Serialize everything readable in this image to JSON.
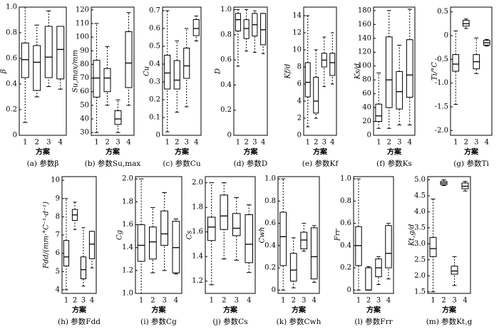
{
  "chart_data": [
    {
      "type": "box",
      "ylabel": "β",
      "xlabel": "方案",
      "caption": "(a) 参数β",
      "categories": [
        "1",
        "2",
        "3",
        "4"
      ],
      "ylim": [
        0,
        1.0
      ],
      "yticks": [
        0,
        0.2,
        0.4,
        0.6,
        0.8,
        {
          "value": 1,
          "label": "1.0"
        }
      ],
      "boxes": [
        {
          "min": 0.1,
          "q1": 0.45,
          "median": 0.59,
          "q3": 0.72,
          "max": 1.0
        },
        {
          "min": 0.3,
          "q1": 0.35,
          "median": 0.57,
          "q3": 0.7,
          "max": 0.86
        },
        {
          "min": 0.38,
          "q1": 0.45,
          "median": 0.61,
          "q3": 0.85,
          "max": 0.97
        },
        {
          "min": 0.36,
          "q1": 0.44,
          "median": 0.67,
          "q3": 0.85,
          "max": 0.85
        }
      ]
    },
    {
      "type": "box",
      "ylabel": "Su,max/mm",
      "xlabel": "方案",
      "caption": "(b) 参数Su,max",
      "categories": [
        "1",
        "2",
        "3",
        "4"
      ],
      "ylim": [
        28,
        122
      ],
      "yticks": [
        30,
        40,
        50,
        60,
        70,
        80,
        90,
        100,
        110,
        120
      ],
      "boxes": [
        {
          "min": 30,
          "q1": 56,
          "median": 70,
          "q3": 83,
          "max": 110
        },
        {
          "min": 50,
          "q1": 60,
          "median": 70,
          "q3": 77,
          "max": 93
        },
        {
          "min": 30,
          "q1": 36,
          "median": 40,
          "q3": 46,
          "max": 54
        },
        {
          "min": 50,
          "q1": 63,
          "median": 81,
          "q3": 104,
          "max": 118
        }
      ]
    },
    {
      "type": "box",
      "ylabel": "Cu",
      "xlabel": "方案",
      "caption": "(c) 参数Cu",
      "categories": [
        "1",
        "2",
        "3",
        "4"
      ],
      "ylim": [
        0,
        0.72
      ],
      "yticks": [
        0,
        0.1,
        0.2,
        0.3,
        0.4,
        0.5,
        0.6,
        0.7
      ],
      "boxes": [
        {
          "min": 0.02,
          "q1": 0.26,
          "median": 0.35,
          "q3": 0.45,
          "max": 0.7
        },
        {
          "min": 0.13,
          "q1": 0.26,
          "median": 0.31,
          "q3": 0.42,
          "max": 0.53
        },
        {
          "min": 0.16,
          "q1": 0.32,
          "median": 0.39,
          "q3": 0.49,
          "max": 0.6
        },
        {
          "min": 0.53,
          "q1": 0.56,
          "median": 0.6,
          "q3": 0.65,
          "max": 0.67
        }
      ]
    },
    {
      "type": "box",
      "ylabel": "D",
      "xlabel": "方案",
      "caption": "(d) 参数D",
      "categories": [
        "1",
        "2",
        "3",
        "4"
      ],
      "ylim": [
        0,
        1.02
      ],
      "yticks": [
        0,
        0.2,
        0.4,
        0.6,
        0.8,
        {
          "value": 1,
          "label": "1.0"
        }
      ],
      "boxes": [
        {
          "min": 0.55,
          "q1": 0.83,
          "median": 0.92,
          "q3": 0.97,
          "max": 1.0
        },
        {
          "min": 0.67,
          "q1": 0.77,
          "median": 0.85,
          "q3": 0.92,
          "max": 1.0
        },
        {
          "min": 0.66,
          "q1": 0.79,
          "median": 0.88,
          "q3": 0.97,
          "max": 0.99
        },
        {
          "min": 0.65,
          "q1": 0.72,
          "median": 0.84,
          "q3": 0.97,
          "max": 0.97
        }
      ]
    },
    {
      "type": "box",
      "ylabel": "Kf/d",
      "xlabel": "方案",
      "caption": "(e) 参数Kf",
      "categories": [
        "1",
        "2",
        "3",
        "4"
      ],
      "ylim": [
        0,
        15
      ],
      "yticks": [
        0,
        2,
        4,
        6,
        8,
        10,
        12,
        14
      ],
      "boxes": [
        {
          "min": 1,
          "q1": 4.5,
          "median": 6.2,
          "q3": 8.5,
          "max": 14
        },
        {
          "min": 2,
          "q1": 2.6,
          "median": 4,
          "q3": 6.8,
          "max": 10
        },
        {
          "min": 5.7,
          "q1": 8,
          "median": 8.8,
          "q3": 9.6,
          "max": 11.5
        },
        {
          "min": 6,
          "q1": 7,
          "median": 8.5,
          "q3": 9.6,
          "max": 12
        }
      ]
    },
    {
      "type": "box",
      "ylabel": "Ks/d",
      "xlabel": "方案",
      "caption": "(f) 参数Ks",
      "categories": [
        "1",
        "2",
        "3",
        "4"
      ],
      "ylim": [
        0,
        185
      ],
      "yticks": [
        0,
        20,
        40,
        60,
        80,
        100,
        120,
        140,
        160,
        180
      ],
      "boxes": [
        {
          "min": 10,
          "q1": 20,
          "median": 28,
          "q3": 45,
          "max": 90
        },
        {
          "min": 10,
          "q1": 40,
          "median": 80,
          "q3": 142,
          "max": 180
        },
        {
          "min": 15,
          "q1": 38,
          "median": 63,
          "q3": 92,
          "max": 130
        },
        {
          "min": 15,
          "q1": 55,
          "median": 87,
          "q3": 138,
          "max": 182
        }
      ]
    },
    {
      "type": "box",
      "ylabel": "Ti/°C",
      "xlabel": "方案",
      "caption": "(g) 参数Ti",
      "categories": [
        "1",
        "2",
        "3",
        "4"
      ],
      "ylim": [
        -2.1,
        0.6
      ],
      "yticks": [
        0.5,
        0,
        -0.5,
        {
          "value": -1,
          "label": "-1.0"
        },
        -1.5,
        {
          "value": -2,
          "label": "-2.0"
        }
      ],
      "boxes": [
        {
          "min": -1.45,
          "q1": -0.75,
          "median": -0.6,
          "q3": -0.4,
          "max": 0.1
        },
        {
          "min": 0.15,
          "q1": 0.2,
          "median": 0.25,
          "q3": 0.32,
          "max": 0.35
        },
        {
          "min": -0.8,
          "q1": -0.7,
          "median": -0.55,
          "q3": -0.4,
          "max": -0.05
        },
        {
          "min": -0.22,
          "q1": -0.2,
          "median": -0.15,
          "q3": -0.1,
          "max": -0.08
        }
      ]
    },
    {
      "type": "box",
      "ylabel": "Fdd/(mm·°C⁻¹·d⁻¹)",
      "xlabel": "方案",
      "caption": "(h) 参数Fdd",
      "categories": [
        "1",
        "2",
        "3",
        "4"
      ],
      "ylim": [
        3.8,
        10.2
      ],
      "yticks": [
        4,
        5,
        6,
        7,
        8,
        9,
        10
      ],
      "boxes": [
        {
          "min": 4,
          "q1": 5.3,
          "median": 5.8,
          "q3": 6.7,
          "max": 9
        },
        {
          "min": 7.3,
          "q1": 7.8,
          "median": 8.1,
          "q3": 8.4,
          "max": 8.8
        },
        {
          "min": 4.2,
          "q1": 4.6,
          "median": 5.1,
          "q3": 5.8,
          "max": 7.4
        },
        {
          "min": 5.2,
          "q1": 5.7,
          "median": 6.5,
          "q3": 7.2,
          "max": 7.2
        }
      ]
    },
    {
      "type": "box",
      "ylabel": "Cg",
      "xlabel": "方案",
      "caption": "(i) 参数Cg",
      "categories": [
        "1",
        "2",
        "3",
        "4"
      ],
      "ylim": [
        1.0,
        2.02
      ],
      "yticks": [
        {
          "value": 1,
          "label": "1.0"
        },
        1.2,
        1.4,
        1.6,
        1.8,
        {
          "value": 2,
          "label": "2.0"
        }
      ],
      "boxes": [
        {
          "min": 1.0,
          "q1": 1.28,
          "median": 1.42,
          "q3": 1.6,
          "max": 2.0
        },
        {
          "min": 1.18,
          "q1": 1.3,
          "median": 1.45,
          "q3": 1.58,
          "max": 1.75
        },
        {
          "min": 1.2,
          "q1": 1.42,
          "median": 1.52,
          "q3": 1.72,
          "max": 1.88
        },
        {
          "min": 1.17,
          "q1": 1.18,
          "median": 1.4,
          "q3": 1.63,
          "max": 1.65
        }
      ]
    },
    {
      "type": "box",
      "ylabel": "Cs",
      "xlabel": "方案",
      "caption": "(j) 参数Cs",
      "categories": [
        "1",
        "2",
        "3",
        "4"
      ],
      "ylim": [
        1.1,
        2.05
      ],
      "yticks": [
        1.2,
        1.4,
        1.6,
        1.8,
        {
          "value": 2,
          "label": "2.0"
        }
      ],
      "boxes": [
        {
          "min": 1.17,
          "q1": 1.53,
          "median": 1.64,
          "q3": 1.72,
          "max": 2.0
        },
        {
          "min": 1.38,
          "q1": 1.62,
          "median": 1.73,
          "q3": 1.9,
          "max": 2.0
        },
        {
          "min": 1.37,
          "q1": 1.57,
          "median": 1.63,
          "q3": 1.75,
          "max": 1.88
        },
        {
          "min": 1.27,
          "q1": 1.35,
          "median": 1.5,
          "q3": 1.74,
          "max": 1.82
        }
      ]
    },
    {
      "type": "box",
      "ylabel": "Cwh",
      "xlabel": "方案",
      "caption": "(k) 参数Cwh",
      "categories": [
        "1",
        "2",
        "3",
        "4"
      ],
      "ylim": [
        -0.03,
        1.02
      ],
      "yticks": [
        0,
        0.2,
        0.4,
        0.6,
        0.8,
        {
          "value": 1,
          "label": "1.0"
        }
      ],
      "boxes": [
        {
          "min": 0,
          "q1": 0.22,
          "median": 0.48,
          "q3": 0.7,
          "max": 1.0
        },
        {
          "min": 0.02,
          "q1": 0.08,
          "median": 0.18,
          "q3": 0.33,
          "max": 0.47
        },
        {
          "min": 0.35,
          "q1": 0.37,
          "median": 0.45,
          "q3": 0.52,
          "max": 0.6
        },
        {
          "min": 0.07,
          "q1": 0.1,
          "median": 0.3,
          "q3": 0.56,
          "max": 0.58
        }
      ]
    },
    {
      "type": "box",
      "ylabel": "Frr",
      "xlabel": "方案",
      "caption": "(l) 参数Frr",
      "categories": [
        "1",
        "2",
        "3",
        "4"
      ],
      "ylim": [
        -0.03,
        1.02
      ],
      "yticks": [
        0,
        0.2,
        0.4,
        0.6,
        0.8,
        {
          "value": 1,
          "label": "1.0"
        }
      ],
      "boxes": [
        {
          "min": 0,
          "q1": 0.22,
          "median": 0.4,
          "q3": 0.57,
          "max": 1.0
        },
        {
          "min": 0,
          "q1": 0,
          "median": 0,
          "q3": 0.2,
          "max": 0.21
        },
        {
          "min": 0.05,
          "q1": 0.12,
          "median": 0.2,
          "q3": 0.28,
          "max": 0.3
        },
        {
          "min": 0.1,
          "q1": 0.2,
          "median": 0.33,
          "q3": 0.58,
          "max": 0.6
        }
      ]
    },
    {
      "type": "box",
      "ylabel": "Kt,g/d",
      "xlabel": "方案",
      "caption": "(m) 参数Kt,g",
      "categories": [
        "1",
        "2",
        "3",
        "4"
      ],
      "ylim": [
        1.45,
        5.1
      ],
      "yticks": [
        1.5,
        {
          "value": 2,
          "label": "2.0"
        },
        2.5,
        {
          "value": 3,
          "label": "3.0"
        },
        3.5,
        {
          "value": 4,
          "label": "4.0"
        },
        4.5,
        {
          "value": 5,
          "label": "5.0"
        }
      ],
      "boxes": [
        {
          "min": 1.5,
          "q1": 2.6,
          "median": 2.85,
          "q3": 3.2,
          "max": 4.4
        },
        {
          "min": 4.82,
          "q1": 4.85,
          "median": 4.9,
          "q3": 4.95,
          "max": 5.0
        },
        {
          "min": 1.7,
          "q1": 2.05,
          "median": 2.15,
          "q3": 2.3,
          "max": 2.6
        },
        {
          "min": 4.65,
          "q1": 4.72,
          "median": 4.8,
          "q3": 4.9,
          "max": 4.95
        }
      ]
    }
  ]
}
